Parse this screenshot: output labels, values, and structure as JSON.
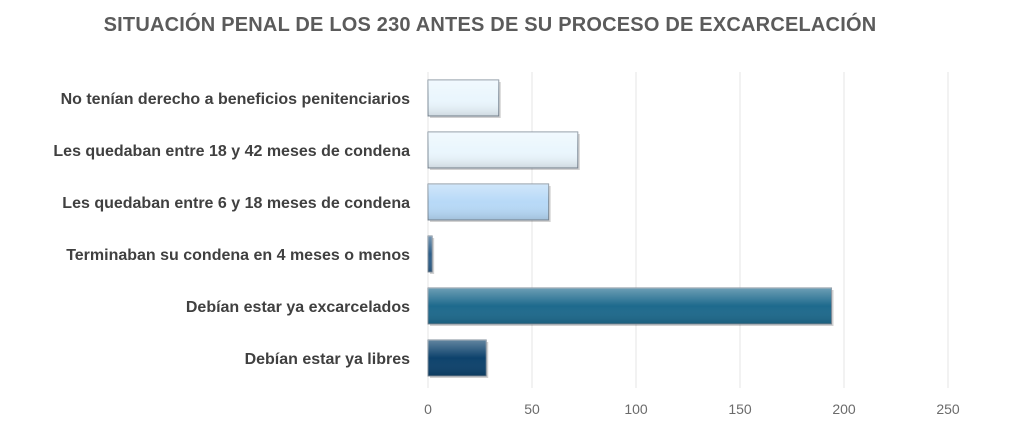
{
  "chart_data": {
    "type": "bar",
    "orientation": "horizontal",
    "title": "SITUACIÓN PENAL DE LOS 230 ANTES DE SU PROCESO DE EXCARCELACIÓN",
    "categories": [
      "No tenían derecho a beneficios penitenciarios",
      "Les quedaban entre 18 y 42 meses de condena",
      "Les quedaban entre 6 y 18 meses de condena",
      "Terminaban su condena en 4 meses o menos",
      "Debían estar ya excarcelados",
      "Debían estar ya libres"
    ],
    "values": [
      34,
      72,
      58,
      2,
      194,
      28
    ],
    "colors": [
      "#eaf6fd",
      "#eaf6fd",
      "#b7d9f7",
      "#2e5f8a",
      "#1e6a8d",
      "#0d426c"
    ],
    "xlim": [
      0,
      250
    ],
    "xticks": [
      0,
      50,
      100,
      150,
      200,
      250
    ],
    "xlabel": "",
    "ylabel": "",
    "grid": true
  }
}
